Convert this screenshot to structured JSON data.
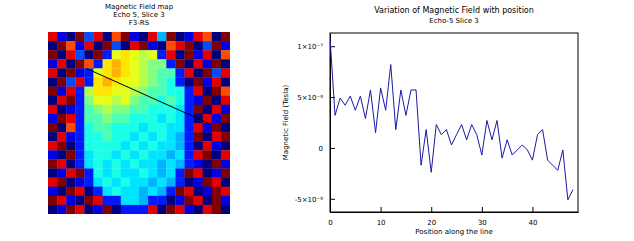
{
  "chart_data": [
    {
      "type": "heatmap",
      "title": "Magnetic Field map",
      "subtitle": [
        "Echo 5, Slice 3",
        "F3-RS"
      ],
      "tick_labels": false,
      "zlim": [
        0,
        1
      ],
      "cells": [
        [
          0.9,
          0.1,
          0.0,
          1.0,
          0.2,
          0.9,
          0.0,
          0.8,
          1.0,
          0.1,
          0.0,
          0.9,
          0.3,
          1.0,
          0.0,
          0.1,
          0.9,
          0.8,
          0.0,
          1.0
        ],
        [
          0.0,
          1.0,
          0.8,
          0.1,
          0.9,
          0.0,
          1.0,
          0.2,
          0.0,
          0.9,
          1.0,
          0.1,
          0.0,
          0.8,
          0.9,
          1.0,
          0.0,
          0.2,
          1.0,
          0.1
        ],
        [
          1.0,
          0.0,
          0.9,
          0.2,
          0.0,
          1.0,
          0.15,
          0.6,
          0.65,
          0.6,
          0.55,
          0.6,
          0.15,
          0.9,
          0.0,
          1.0,
          0.1,
          0.9,
          0.0,
          0.8
        ],
        [
          0.1,
          0.9,
          0.0,
          1.0,
          0.8,
          0.15,
          0.65,
          0.7,
          0.65,
          0.6,
          0.55,
          0.5,
          0.5,
          0.15,
          1.0,
          0.0,
          0.9,
          0.1,
          1.0,
          0.0
        ],
        [
          0.9,
          0.0,
          1.0,
          0.1,
          0.15,
          0.6,
          0.65,
          0.7,
          0.65,
          0.6,
          0.55,
          0.5,
          0.45,
          0.45,
          0.15,
          0.9,
          0.0,
          1.0,
          0.2,
          0.9
        ],
        [
          0.0,
          1.0,
          0.2,
          0.9,
          0.15,
          0.65,
          0.7,
          0.65,
          0.6,
          0.6,
          0.55,
          0.5,
          0.45,
          0.4,
          0.15,
          0.0,
          1.0,
          0.1,
          0.9,
          0.0
        ],
        [
          1.0,
          0.1,
          0.9,
          0.15,
          0.55,
          0.65,
          0.65,
          0.6,
          0.6,
          0.55,
          0.5,
          0.45,
          0.45,
          0.4,
          0.4,
          0.15,
          0.9,
          0.0,
          1.0,
          0.8
        ],
        [
          0.0,
          0.9,
          1.0,
          0.15,
          0.5,
          0.6,
          0.6,
          0.55,
          0.6,
          0.5,
          0.45,
          0.45,
          0.4,
          0.45,
          0.4,
          0.15,
          0.1,
          1.0,
          0.0,
          0.9
        ],
        [
          0.9,
          0.0,
          0.1,
          0.15,
          0.45,
          0.5,
          0.55,
          0.5,
          0.5,
          0.45,
          0.45,
          0.4,
          0.4,
          0.4,
          0.35,
          0.15,
          1.0,
          0.0,
          0.9,
          0.1
        ],
        [
          0.1,
          1.0,
          0.9,
          0.15,
          0.45,
          0.45,
          0.5,
          0.45,
          0.45,
          0.4,
          0.4,
          0.4,
          0.35,
          0.4,
          0.35,
          0.15,
          0.0,
          0.9,
          0.1,
          1.0
        ],
        [
          1.0,
          0.0,
          0.8,
          0.15,
          0.4,
          0.45,
          0.45,
          0.4,
          0.4,
          0.4,
          0.35,
          0.4,
          0.4,
          0.35,
          0.35,
          0.15,
          0.9,
          0.1,
          1.0,
          0.0
        ],
        [
          0.0,
          0.9,
          0.1,
          0.15,
          0.4,
          0.4,
          0.45,
          0.4,
          0.4,
          0.35,
          0.4,
          0.35,
          0.4,
          0.35,
          0.3,
          0.15,
          1.0,
          0.0,
          0.9,
          1.0
        ],
        [
          0.9,
          1.0,
          0.0,
          0.15,
          0.4,
          0.4,
          0.4,
          0.4,
          0.35,
          0.4,
          0.35,
          0.4,
          0.35,
          0.35,
          0.3,
          0.15,
          0.0,
          0.9,
          0.1,
          0.0
        ],
        [
          0.1,
          0.0,
          1.0,
          0.15,
          0.35,
          0.4,
          0.4,
          0.35,
          0.4,
          0.35,
          0.4,
          0.35,
          0.35,
          0.3,
          0.35,
          0.15,
          0.9,
          1.0,
          0.0,
          0.9
        ],
        [
          1.0,
          0.9,
          0.0,
          0.15,
          0.35,
          0.4,
          0.35,
          0.4,
          0.35,
          0.4,
          0.35,
          0.35,
          0.3,
          0.35,
          0.3,
          0.15,
          0.1,
          0.0,
          1.0,
          0.1
        ],
        [
          0.0,
          0.1,
          0.9,
          1.0,
          0.15,
          0.4,
          0.35,
          0.4,
          0.35,
          0.35,
          0.4,
          0.35,
          0.3,
          0.35,
          0.15,
          1.0,
          0.9,
          0.0,
          0.1,
          1.0
        ],
        [
          0.9,
          1.0,
          0.0,
          0.1,
          0.15,
          0.35,
          0.4,
          0.35,
          0.4,
          0.35,
          0.35,
          0.3,
          0.35,
          0.3,
          0.15,
          0.0,
          0.1,
          1.0,
          0.9,
          0.0
        ],
        [
          0.1,
          0.0,
          1.0,
          0.9,
          0.0,
          0.15,
          0.35,
          0.4,
          0.35,
          0.35,
          0.3,
          0.35,
          0.3,
          0.15,
          1.0,
          0.9,
          0.0,
          0.1,
          1.0,
          0.9
        ],
        [
          1.0,
          0.9,
          0.1,
          0.0,
          1.0,
          0.9,
          0.15,
          0.15,
          0.35,
          0.35,
          0.3,
          0.15,
          0.15,
          0.0,
          0.1,
          1.0,
          0.9,
          0.0,
          1.0,
          0.1
        ],
        [
          0.0,
          0.1,
          1.0,
          0.9,
          0.0,
          0.1,
          1.0,
          0.0,
          0.15,
          0.15,
          0.15,
          0.9,
          0.0,
          1.0,
          0.9,
          0.1,
          0.0,
          0.9,
          1.0,
          0.0
        ]
      ],
      "profile_line": {
        "x": [
          4.2,
          17.8
        ],
        "y": [
          4.0,
          10.1
        ]
      }
    },
    {
      "type": "line",
      "title": "Variation of Magnetic Field with position",
      "subtitle": "Echo-5 Slice 3",
      "x_label": "Position along the line",
      "y_label": "Magnetic Field (Tesla)",
      "color": "#1a1aa6",
      "x": [
        0,
        1,
        2,
        3,
        4,
        5,
        6,
        7,
        8,
        9,
        10,
        11,
        12,
        13,
        14,
        15,
        16,
        17,
        18,
        19,
        20,
        21,
        22,
        23,
        24,
        25,
        26,
        27,
        28,
        29,
        30,
        31,
        32,
        33,
        34,
        35,
        36,
        37,
        38,
        39,
        40,
        41,
        42,
        43,
        44,
        45,
        46,
        47,
        48
      ],
      "values": [
        1.08e-07,
        3.2e-08,
        4.9e-08,
        4.2e-08,
        5.1e-08,
        3.7e-08,
        5.1e-08,
        2.9e-08,
        5.7e-08,
        1.5e-08,
        5.9e-08,
        3.7e-08,
        8.2e-08,
        1.8e-08,
        5.7e-08,
        3.2e-08,
        5.7e-08,
        5.7e-08,
        -1.7e-08,
        1.8e-08,
        -2.4e-08,
        2.3e-08,
        1.3e-08,
        1.8e-08,
        3e-09,
        1.3e-08,
        2.3e-08,
        8e-09,
        2.3e-08,
        1.3e-08,
        -7e-09,
        2.7e-08,
        8e-09,
        2.7e-08,
        -1e-08,
        8e-09,
        -7e-09,
        -2e-09,
        3e-09,
        -2e-09,
        -1.2e-08,
        1.3e-08,
        1.8e-08,
        -1.2e-08,
        -1.7e-08,
        -2.2e-08,
        -2e-09,
        -5.1e-08,
        -4.1e-08
      ],
      "xlim": [
        0,
        49
      ],
      "xticks": [
        0,
        10,
        20,
        30,
        40
      ],
      "ylim": [
        -6.3e-08,
        1.13e-07
      ],
      "yticks": [
        {
          "value": -5e-08,
          "label": "-5×10⁻⁸"
        },
        0,
        {
          "value": 5e-08,
          "label": "5×10⁻⁸"
        },
        {
          "value": 1e-07,
          "label": "1×10⁻⁷"
        }
      ]
    }
  ]
}
